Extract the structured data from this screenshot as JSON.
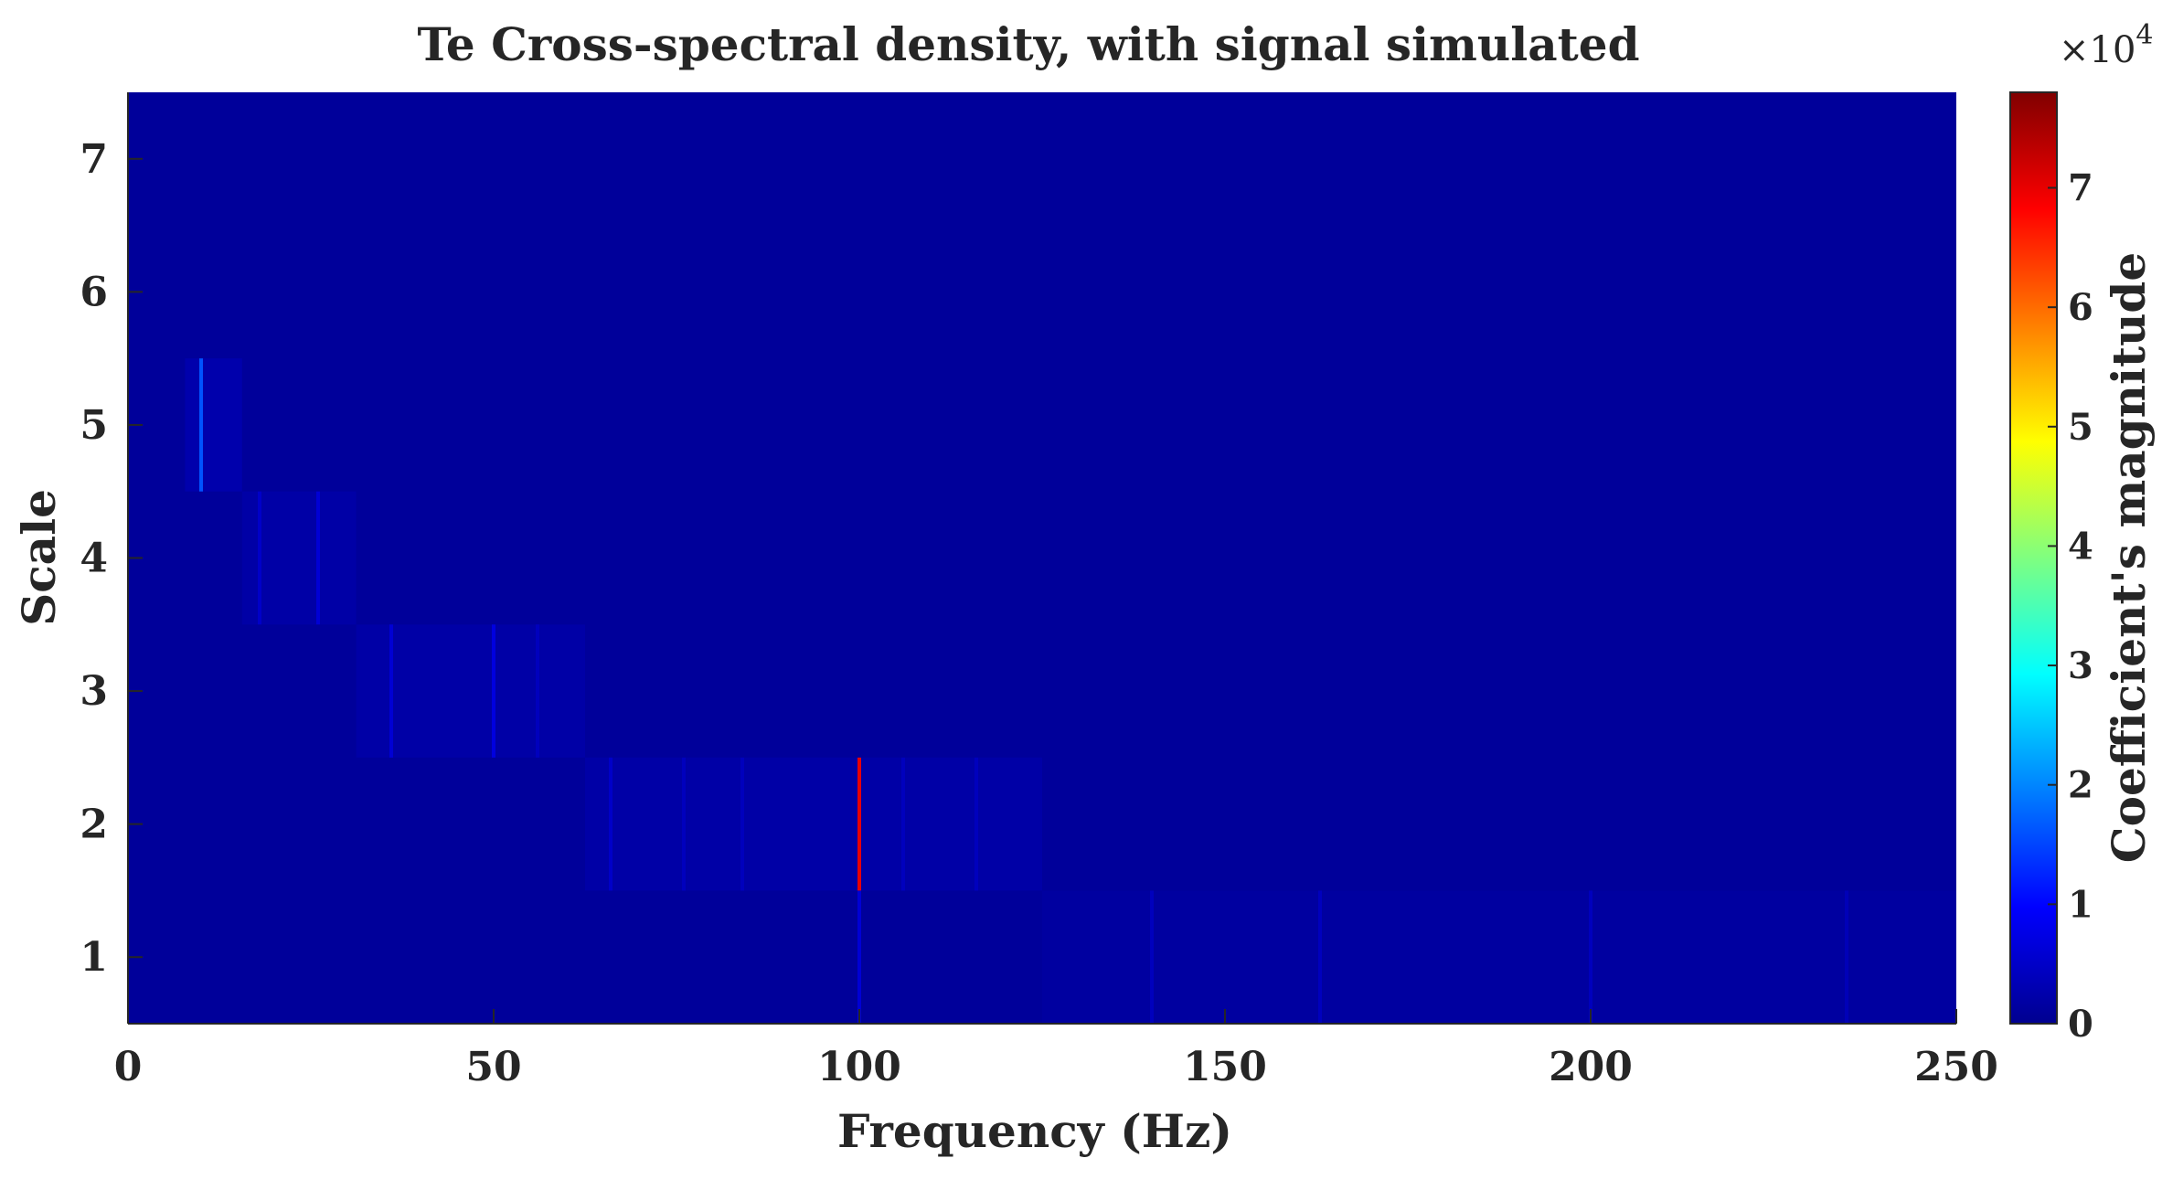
{
  "chart_data": {
    "type": "heatmap",
    "title": "Te Cross-spectral density, with signal simulated",
    "xlabel": "Frequency (Hz)",
    "ylabel": "Scale",
    "xlim": [
      0,
      250
    ],
    "ylim": [
      0.5,
      7.5
    ],
    "xticks": [
      "0",
      "50",
      "100",
      "150",
      "200",
      "250"
    ],
    "yticks": [
      "1",
      "2",
      "3",
      "4",
      "5",
      "6",
      "7"
    ],
    "colorbar": {
      "label": "Coefficient's magnitude",
      "multiplier": "×10",
      "exponent": "4",
      "range": [
        0,
        7.8
      ],
      "ticks": [
        "0",
        "1",
        "2",
        "3",
        "4",
        "5",
        "6",
        "7"
      ]
    },
    "background_value": 0.1,
    "bands": [
      {
        "scale": 5,
        "x": [
          7.8,
          15.6
        ],
        "value": 0.25
      },
      {
        "scale": 4,
        "x": [
          15.6,
          31.2
        ],
        "value": 0.2
      },
      {
        "scale": 3,
        "x": [
          31.2,
          62.5
        ],
        "value": 0.2
      },
      {
        "scale": 2,
        "x": [
          62.5,
          125
        ],
        "value": 0.2
      },
      {
        "scale": 1,
        "x": [
          125,
          250
        ],
        "value": 0.15
      }
    ],
    "peaks": [
      {
        "scale": 5,
        "x": 10,
        "value": 1.6
      },
      {
        "scale": 4,
        "x": 18,
        "value": 0.5
      },
      {
        "scale": 4,
        "x": 26,
        "value": 0.6
      },
      {
        "scale": 3,
        "x": 36,
        "value": 0.6
      },
      {
        "scale": 3,
        "x": 50,
        "value": 0.7
      },
      {
        "scale": 3,
        "x": 56,
        "value": 0.4
      },
      {
        "scale": 2,
        "x": 66,
        "value": 0.5
      },
      {
        "scale": 2,
        "x": 76,
        "value": 0.4
      },
      {
        "scale": 2,
        "x": 84,
        "value": 0.4
      },
      {
        "scale": 2,
        "x": 100,
        "value": 7.0
      },
      {
        "scale": 2,
        "x": 106,
        "value": 0.4
      },
      {
        "scale": 2,
        "x": 116,
        "value": 0.4
      },
      {
        "scale": 1,
        "x": 100,
        "value": 0.6
      },
      {
        "scale": 1,
        "x": 140,
        "value": 0.4
      },
      {
        "scale": 1,
        "x": 163,
        "value": 0.4
      },
      {
        "scale": 1,
        "x": 200,
        "value": 0.4
      },
      {
        "scale": 1,
        "x": 235,
        "value": 0.35
      }
    ],
    "colormap": "jet",
    "grid": false
  }
}
